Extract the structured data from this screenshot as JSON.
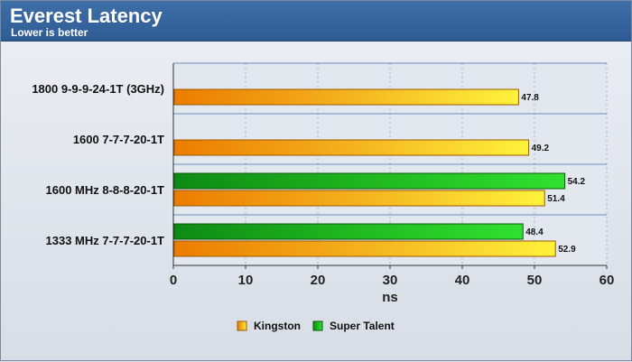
{
  "chart_data": {
    "type": "bar",
    "orientation": "horizontal",
    "title": "Everest Latency",
    "subtitle": "Lower is better",
    "xlabel": "ns",
    "ylabel": "",
    "xlim": [
      0,
      60
    ],
    "xticks": [
      0,
      10,
      20,
      30,
      40,
      50,
      60
    ],
    "grid": true,
    "legend_position": "bottom",
    "categories": [
      "1800 9-9-9-24-1T (3GHz)",
      "1600 7-7-7-20-1T",
      "1600 MHz 8-8-8-20-1T",
      "1333 MHz 7-7-7-20-1T"
    ],
    "series": [
      {
        "name": "Kingston",
        "color": "#f0a400",
        "values": [
          47.8,
          49.2,
          51.4,
          52.9
        ]
      },
      {
        "name": "Super Talent",
        "color": "#22b822",
        "values": [
          null,
          null,
          54.2,
          48.4
        ]
      }
    ]
  }
}
